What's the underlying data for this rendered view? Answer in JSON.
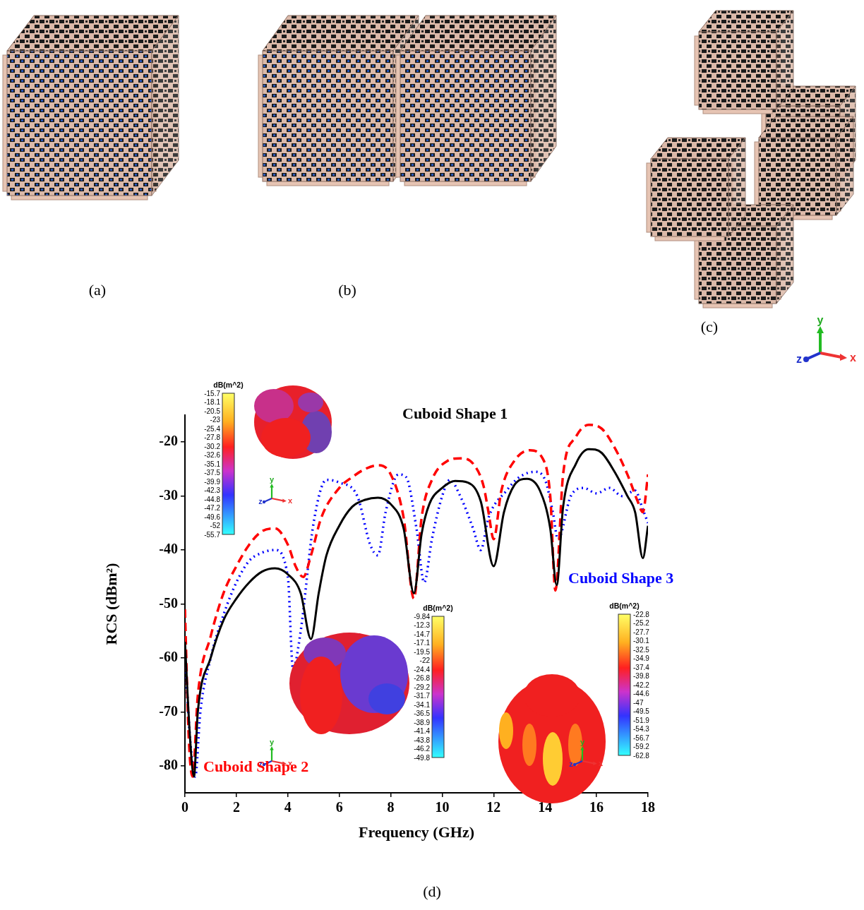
{
  "panels": [
    "(a)",
    "(b)",
    "(c)"
  ],
  "chart_label": "(d)",
  "triad_labels": {
    "x": "x",
    "y": "y",
    "z": "z"
  },
  "insets": [
    {
      "colorbar": {
        "label": "dB(m^2)",
        "ticks": [
          -15.7,
          -18.1,
          -20.5,
          -23,
          -25.4,
          -27.8,
          -30.2,
          -32.6,
          -35.1,
          -37.5,
          -39.9,
          -42.3,
          -44.8,
          -47.2,
          -49.6,
          -52,
          -55.7
        ]
      }
    },
    {
      "colorbar": {
        "label": "dB(m^2)",
        "ticks": [
          -9.84,
          -12.3,
          -14.7,
          -17.1,
          -19.5,
          -22,
          -24.4,
          -26.8,
          -29.2,
          -31.7,
          -34.1,
          -36.5,
          -38.9,
          -41.4,
          -43.8,
          -46.2,
          -49.8
        ]
      }
    },
    {
      "colorbar": {
        "label": "dB(m^2)",
        "ticks": [
          -22.8,
          -25.2,
          -27.7,
          -30.1,
          -32.5,
          -34.9,
          -37.4,
          -39.8,
          -42.2,
          -44.6,
          -47,
          -49.5,
          -51.9,
          -54.3,
          -56.7,
          -59.2,
          -62.8
        ]
      }
    }
  ],
  "chart_data": {
    "type": "line",
    "xlabel": "Frequency (GHz)",
    "ylabel": "RCS (dBm²)",
    "xlim": [
      0,
      18
    ],
    "xticks": [
      0,
      2,
      4,
      6,
      8,
      10,
      12,
      14,
      16,
      18
    ],
    "ylim": [
      -85,
      -15
    ],
    "yticks": [
      -80,
      -70,
      -60,
      -50,
      -40,
      -30,
      -20
    ],
    "grid": false,
    "series": [
      {
        "name": "Cuboid Shape 1",
        "color": "#000000",
        "line_style": "solid",
        "x": [
          0,
          0.2,
          0.35,
          0.5,
          1,
          1.5,
          2,
          2.5,
          3,
          3.5,
          4,
          4.5,
          4.9,
          5.2,
          5.5,
          6,
          6.5,
          7,
          7.5,
          8,
          8.5,
          8.9,
          9.2,
          9.5,
          10,
          10.5,
          11,
          11.5,
          12,
          12.4,
          12.8,
          13.3,
          13.8,
          14.2,
          14.45,
          14.7,
          15.2,
          15.7,
          16.2,
          16.7,
          17.2,
          17.5,
          17.8,
          18
        ],
        "values": [
          -57,
          -75,
          -82,
          -70,
          -60,
          -53,
          -49,
          -46,
          -44,
          -43.4,
          -44.5,
          -48,
          -56.5,
          -48,
          -41,
          -35.5,
          -32,
          -30.7,
          -30.3,
          -31.5,
          -36,
          -48,
          -37,
          -31.5,
          -28.5,
          -27.2,
          -27.5,
          -31,
          -43,
          -33,
          -28,
          -26.8,
          -29,
          -36,
          -46.5,
          -32,
          -24,
          -21.3,
          -22,
          -25.5,
          -30,
          -33,
          -41.5,
          -35.5
        ]
      },
      {
        "name": "Cuboid Shape 2",
        "color": "#ff0000",
        "line_style": "dashed",
        "x": [
          0,
          0.15,
          0.3,
          0.5,
          1,
          1.5,
          2,
          2.5,
          3,
          3.5,
          4,
          4.3,
          4.6,
          4.9,
          5.3,
          6,
          6.5,
          7,
          7.5,
          8,
          8.5,
          8.9,
          9.2,
          9.6,
          10.2,
          10.7,
          11.2,
          11.6,
          11.8,
          12,
          12.3,
          12.8,
          13.4,
          13.9,
          14.2,
          14.4,
          14.7,
          15.2,
          15.7,
          16.2,
          16.7,
          17.2,
          17.6,
          17.8,
          18
        ],
        "values": [
          -51,
          -75,
          -82,
          -67,
          -56,
          -48,
          -43,
          -39,
          -36.5,
          -36,
          -39,
          -43,
          -45,
          -41,
          -34,
          -28.5,
          -26.5,
          -25,
          -24.3,
          -26,
          -34,
          -49,
          -34,
          -27,
          -23.5,
          -23,
          -24,
          -28,
          -33,
          -38,
          -29,
          -23.5,
          -21.5,
          -23,
          -30,
          -47.5,
          -26,
          -19,
          -16.8,
          -17.5,
          -21,
          -26,
          -31,
          -33,
          -26
        ]
      },
      {
        "name": "Cuboid Shape 3",
        "color": "#0000ff",
        "line_style": "dotted",
        "x": [
          0,
          0.2,
          0.4,
          0.6,
          1,
          1.5,
          2,
          2.5,
          3,
          3.5,
          4,
          4.2,
          4.5,
          5,
          5.5,
          6,
          6.7,
          7.2,
          7.5,
          7.8,
          8.3,
          8.6,
          9,
          9.3,
          9.6,
          10,
          10.3,
          10.7,
          11.2,
          11.5,
          11.8,
          12.5,
          13,
          13.6,
          14,
          14.3,
          14.5,
          15,
          15.5,
          16,
          16.5,
          17,
          17.5,
          17.8,
          18
        ],
        "values": [
          -59,
          -75,
          -82,
          -70,
          -60,
          -52,
          -46,
          -42,
          -40.5,
          -40,
          -45,
          -62,
          -55,
          -35,
          -27,
          -27.5,
          -30,
          -39,
          -41,
          -33,
          -26,
          -26.5,
          -36,
          -46,
          -38,
          -30,
          -27,
          -30,
          -36,
          -40,
          -34,
          -29,
          -26.5,
          -25.5,
          -27,
          -33,
          -38,
          -30,
          -28.5,
          -29.5,
          -28.5,
          -30,
          -29,
          -32.5,
          -35
        ]
      }
    ]
  }
}
